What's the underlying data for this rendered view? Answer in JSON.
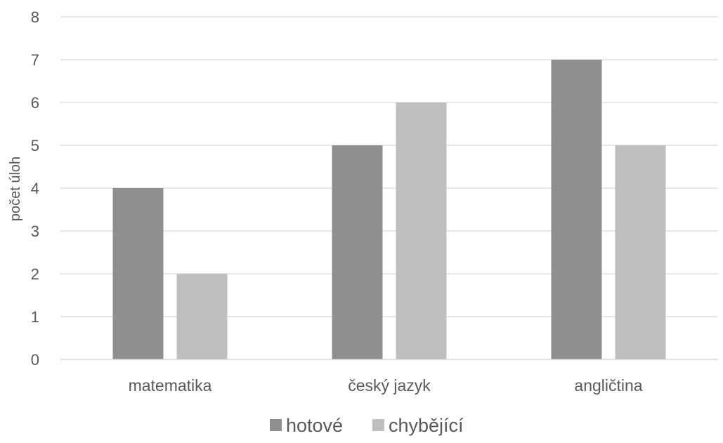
{
  "chart_data": {
    "type": "bar",
    "title": "",
    "xlabel": "",
    "ylabel": "počet úloh",
    "ylim": [
      0,
      8
    ],
    "yticks": [
      0,
      1,
      2,
      3,
      4,
      5,
      6,
      7,
      8
    ],
    "grid": true,
    "legend_position": "bottom",
    "categories": [
      "matematika",
      "český jazyk",
      "angličtina"
    ],
    "series": [
      {
        "name": "hotové",
        "values": [
          4,
          5,
          7
        ],
        "color": "#8f8f8f"
      },
      {
        "name": "chybějící",
        "values": [
          2,
          6,
          5
        ],
        "color": "#bfbfbf"
      }
    ]
  }
}
